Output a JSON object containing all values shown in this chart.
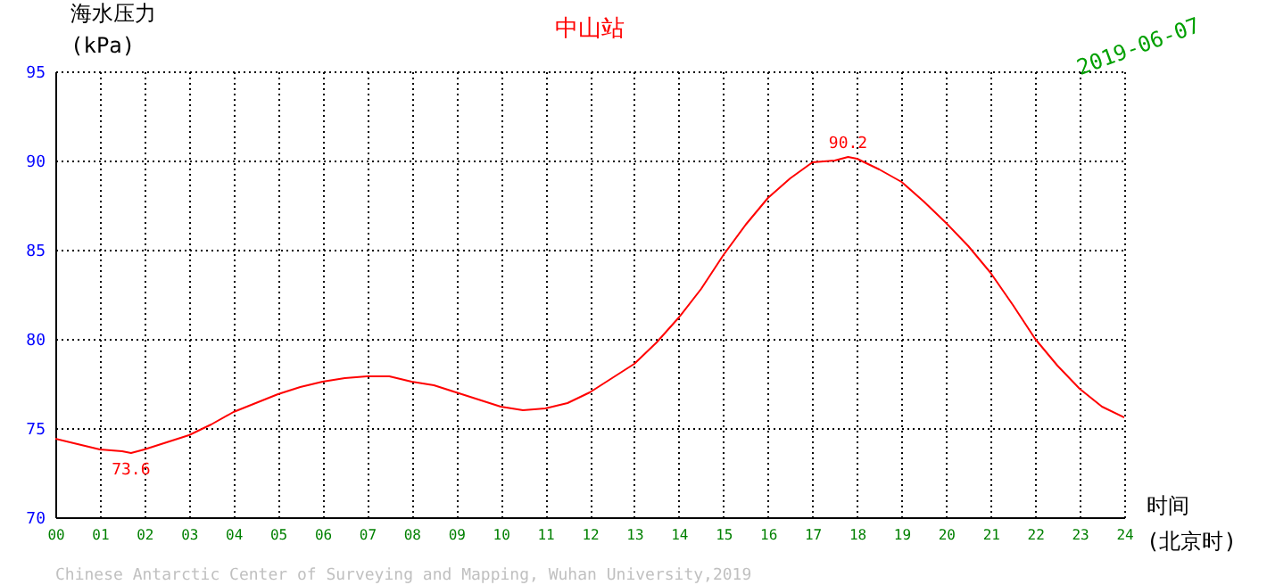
{
  "chart_data": {
    "type": "line",
    "title": "中山站",
    "subtitle": "2019-06-07",
    "ylabel": "海水压力 (kPa)",
    "xlabel": "时间 (北京时)",
    "x": [
      0,
      0.5,
      1,
      1.5,
      1.7,
      2,
      2.5,
      3,
      3.5,
      4,
      4.5,
      5,
      5.5,
      6,
      6.5,
      7,
      7.5,
      8,
      8.5,
      9,
      9.5,
      10,
      10.5,
      11,
      11.5,
      12,
      12.5,
      13,
      13.5,
      14,
      14.5,
      15,
      15.5,
      16,
      16.5,
      17,
      17.5,
      17.8,
      18,
      18.5,
      19,
      19.5,
      20,
      20.5,
      21,
      21.5,
      22,
      22.5,
      23,
      23.5,
      24
    ],
    "series": [
      {
        "color": "#ff0000",
        "values": [
          74.4,
          74.1,
          73.8,
          73.7,
          73.6,
          73.8,
          74.2,
          74.6,
          75.2,
          75.9,
          76.4,
          76.9,
          77.3,
          77.6,
          77.8,
          77.9,
          77.9,
          77.6,
          77.4,
          77.0,
          76.6,
          76.2,
          76.0,
          76.1,
          76.4,
          77.0,
          77.8,
          78.6,
          79.8,
          81.2,
          82.8,
          84.7,
          86.4,
          87.9,
          89.0,
          89.9,
          90.0,
          90.2,
          90.1,
          89.5,
          88.8,
          87.7,
          86.5,
          85.2,
          83.7,
          81.9,
          80.0,
          78.5,
          77.2,
          76.2,
          75.6
        ]
      }
    ],
    "xlim": [
      0,
      24
    ],
    "ylim": [
      70,
      95
    ],
    "xticks": [
      {
        "value": 0,
        "label": "00"
      },
      {
        "value": 1,
        "label": "01"
      },
      {
        "value": 2,
        "label": "02"
      },
      {
        "value": 3,
        "label": "03"
      },
      {
        "value": 4,
        "label": "04"
      },
      {
        "value": 5,
        "label": "05"
      },
      {
        "value": 6,
        "label": "06"
      },
      {
        "value": 7,
        "label": "07"
      },
      {
        "value": 8,
        "label": "08"
      },
      {
        "value": 9,
        "label": "09"
      },
      {
        "value": 10,
        "label": "10"
      },
      {
        "value": 11,
        "label": "11"
      },
      {
        "value": 12,
        "label": "12"
      },
      {
        "value": 13,
        "label": "13"
      },
      {
        "value": 14,
        "label": "14"
      },
      {
        "value": 15,
        "label": "15"
      },
      {
        "value": 16,
        "label": "16"
      },
      {
        "value": 17,
        "label": "17"
      },
      {
        "value": 18,
        "label": "18"
      },
      {
        "value": 19,
        "label": "19"
      },
      {
        "value": 20,
        "label": "20"
      },
      {
        "value": 21,
        "label": "21"
      },
      {
        "value": 22,
        "label": "22"
      },
      {
        "value": 23,
        "label": "23"
      },
      {
        "value": 24,
        "label": "24"
      }
    ],
    "yticks": [
      70,
      75,
      80,
      85,
      90,
      95
    ],
    "grid": true,
    "annotations": [
      {
        "text": "90.2",
        "x": 17.8,
        "y": 90.2
      },
      {
        "text": "73.6",
        "x": 1.7,
        "y": 73.6
      },
      "Chinese Antarctic Center of Surveying and Mapping, Wuhan University,2019"
    ]
  }
}
